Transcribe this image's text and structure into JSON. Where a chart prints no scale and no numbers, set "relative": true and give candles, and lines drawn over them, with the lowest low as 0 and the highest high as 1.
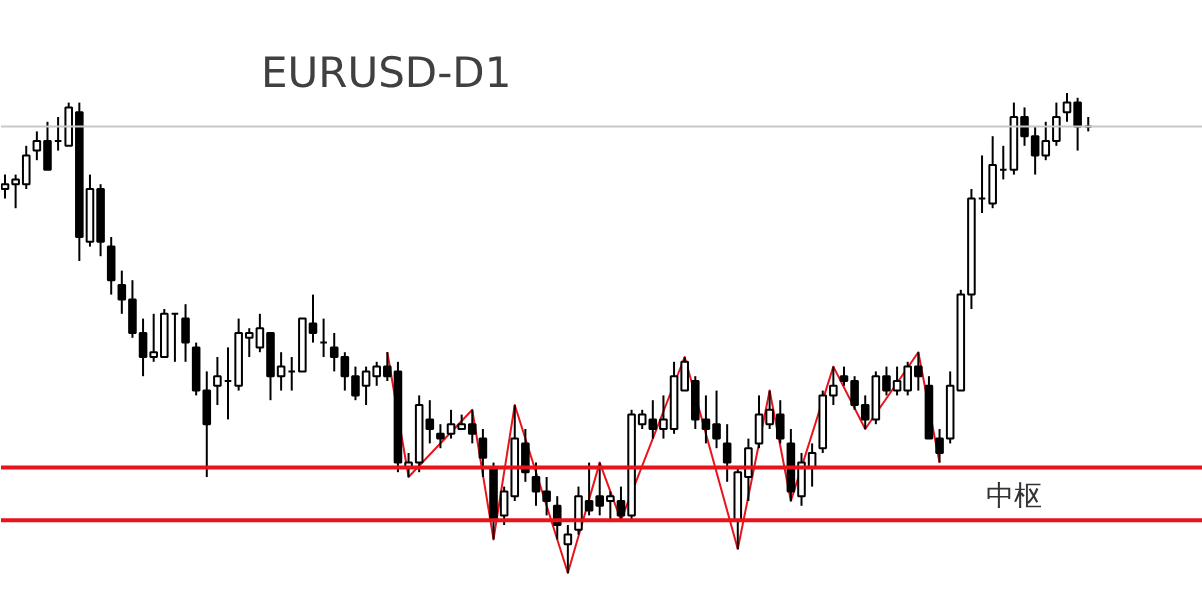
{
  "chart_data": {
    "type": "candlestick",
    "title": "EURUSD-D1",
    "relative": true,
    "color": "#000000",
    "categories": [
      null,
      null,
      null,
      null,
      null,
      null,
      null,
      null,
      null,
      null,
      null,
      null,
      null,
      null,
      null,
      null,
      null,
      null,
      null,
      null,
      null,
      null,
      null,
      null,
      null,
      null,
      null,
      null,
      null,
      null,
      null,
      null,
      null,
      null,
      null,
      null,
      null,
      null,
      null,
      null,
      null,
      null,
      null,
      null,
      null,
      null,
      null,
      null,
      null,
      null,
      null,
      null,
      null,
      null,
      null,
      null,
      null,
      null,
      null,
      null,
      null,
      null,
      null,
      null,
      null,
      null,
      null,
      null,
      null,
      null,
      null,
      null,
      null,
      null,
      null,
      null,
      null,
      null,
      null,
      null,
      null,
      null,
      null,
      null,
      null,
      null,
      null,
      null,
      null,
      null,
      null,
      null,
      null,
      null,
      null,
      null,
      null,
      null,
      null,
      null,
      null,
      null,
      null
    ],
    "ohlc": [
      [
        0.8,
        0.83,
        0.78,
        0.81
      ],
      [
        0.81,
        0.83,
        0.76,
        0.82
      ],
      [
        0.81,
        0.89,
        0.8,
        0.87
      ],
      [
        0.88,
        0.92,
        0.86,
        0.9
      ],
      [
        0.9,
        0.94,
        0.84,
        0.84
      ],
      [
        0.9,
        0.95,
        0.88,
        0.9
      ],
      [
        0.89,
        0.98,
        0.89,
        0.97
      ],
      [
        0.96,
        0.98,
        0.65,
        0.7
      ],
      [
        0.69,
        0.83,
        0.68,
        0.8
      ],
      [
        0.8,
        0.81,
        0.66,
        0.69
      ],
      [
        0.68,
        0.7,
        0.58,
        0.61
      ],
      [
        0.6,
        0.63,
        0.54,
        0.57
      ],
      [
        0.57,
        0.61,
        0.49,
        0.5
      ],
      [
        0.5,
        0.53,
        0.41,
        0.45
      ],
      [
        0.45,
        0.54,
        0.44,
        0.46
      ],
      [
        0.45,
        0.55,
        0.45,
        0.54
      ],
      [
        0.54,
        0.54,
        0.44,
        0.54
      ],
      [
        0.53,
        0.56,
        0.44,
        0.48
      ],
      [
        0.47,
        0.48,
        0.37,
        0.38
      ],
      [
        0.38,
        0.42,
        0.2,
        0.31
      ],
      [
        0.39,
        0.45,
        0.35,
        0.41
      ],
      [
        0.4,
        0.47,
        0.32,
        0.4
      ],
      [
        0.39,
        0.53,
        0.38,
        0.5
      ],
      [
        0.49,
        0.51,
        0.45,
        0.5
      ],
      [
        0.47,
        0.54,
        0.46,
        0.51
      ],
      [
        0.5,
        0.5,
        0.36,
        0.41
      ],
      [
        0.41,
        0.46,
        0.38,
        0.43
      ],
      [
        0.42,
        0.45,
        0.38,
        0.42
      ],
      [
        0.42,
        0.53,
        0.42,
        0.53
      ],
      [
        0.52,
        0.58,
        0.48,
        0.5
      ],
      [
        0.48,
        0.53,
        0.45,
        0.48
      ],
      [
        0.47,
        0.5,
        0.42,
        0.45
      ],
      [
        0.45,
        0.46,
        0.38,
        0.41
      ],
      [
        0.41,
        0.43,
        0.36,
        0.37
      ],
      [
        0.39,
        0.43,
        0.35,
        0.42
      ],
      [
        0.41,
        0.44,
        0.39,
        0.43
      ],
      [
        0.43,
        0.46,
        0.4,
        0.41
      ],
      [
        0.42,
        0.44,
        0.21,
        0.23
      ],
      [
        0.22,
        0.25,
        0.2,
        0.23
      ],
      [
        0.23,
        0.37,
        0.21,
        0.35
      ],
      [
        0.32,
        0.36,
        0.27,
        0.3
      ],
      [
        0.29,
        0.31,
        0.26,
        0.28
      ],
      [
        0.29,
        0.34,
        0.28,
        0.31
      ],
      [
        0.3,
        0.33,
        0.3,
        0.31
      ],
      [
        0.31,
        0.34,
        0.27,
        0.29
      ],
      [
        0.28,
        0.3,
        0.2,
        0.24
      ],
      [
        0.22,
        0.23,
        0.07,
        0.11
      ],
      [
        0.12,
        0.18,
        0.1,
        0.17
      ],
      [
        0.16,
        0.35,
        0.15,
        0.28
      ],
      [
        0.27,
        0.3,
        0.19,
        0.21
      ],
      [
        0.2,
        0.23,
        0.14,
        0.17
      ],
      [
        0.17,
        0.2,
        0.12,
        0.15
      ],
      [
        0.14,
        0.16,
        0.07,
        0.1
      ],
      [
        0.06,
        0.1,
        0.0,
        0.08
      ],
      [
        0.09,
        0.18,
        0.08,
        0.16
      ],
      [
        0.15,
        0.23,
        0.12,
        0.13
      ],
      [
        0.16,
        0.23,
        0.12,
        0.14
      ],
      [
        0.15,
        0.17,
        0.11,
        0.16
      ],
      [
        0.15,
        0.18,
        0.11,
        0.12
      ],
      [
        0.12,
        0.34,
        0.11,
        0.33
      ],
      [
        0.31,
        0.34,
        0.3,
        0.33
      ],
      [
        0.32,
        0.36,
        0.28,
        0.3
      ],
      [
        0.3,
        0.37,
        0.28,
        0.32
      ],
      [
        0.3,
        0.44,
        0.29,
        0.41
      ],
      [
        0.38,
        0.45,
        0.38,
        0.44
      ],
      [
        0.4,
        0.41,
        0.3,
        0.32
      ],
      [
        0.32,
        0.37,
        0.27,
        0.3
      ],
      [
        0.31,
        0.38,
        0.26,
        0.28
      ],
      [
        0.27,
        0.31,
        0.19,
        0.23
      ],
      [
        0.11,
        0.22,
        0.05,
        0.21
      ],
      [
        0.2,
        0.28,
        0.15,
        0.26
      ],
      [
        0.27,
        0.37,
        0.26,
        0.33
      ],
      [
        0.31,
        0.38,
        0.3,
        0.34
      ],
      [
        0.33,
        0.36,
        0.27,
        0.28
      ],
      [
        0.27,
        0.3,
        0.15,
        0.17
      ],
      [
        0.16,
        0.25,
        0.14,
        0.23
      ],
      [
        0.22,
        0.27,
        0.18,
        0.25
      ],
      [
        0.26,
        0.38,
        0.25,
        0.37
      ],
      [
        0.37,
        0.43,
        0.35,
        0.39
      ],
      [
        0.41,
        0.43,
        0.39,
        0.4
      ],
      [
        0.4,
        0.41,
        0.34,
        0.35
      ],
      [
        0.35,
        0.37,
        0.3,
        0.32
      ],
      [
        0.32,
        0.42,
        0.31,
        0.41
      ],
      [
        0.41,
        0.43,
        0.37,
        0.38
      ],
      [
        0.38,
        0.43,
        0.37,
        0.4
      ],
      [
        0.38,
        0.44,
        0.37,
        0.43
      ],
      [
        0.43,
        0.46,
        0.38,
        0.41
      ],
      [
        0.39,
        0.41,
        0.28,
        0.28
      ],
      [
        0.28,
        0.3,
        0.23,
        0.25
      ],
      [
        0.28,
        0.42,
        0.27,
        0.39
      ],
      [
        0.38,
        0.59,
        0.38,
        0.58
      ],
      [
        0.58,
        0.8,
        0.55,
        0.78
      ],
      [
        0.78,
        0.87,
        0.75,
        0.78
      ],
      [
        0.77,
        0.91,
        0.76,
        0.85
      ],
      [
        0.84,
        0.89,
        0.82,
        0.84
      ],
      [
        0.84,
        0.98,
        0.83,
        0.95
      ],
      [
        0.95,
        0.97,
        0.89,
        0.91
      ],
      [
        0.91,
        0.93,
        0.83,
        0.87
      ],
      [
        0.87,
        0.94,
        0.86,
        0.9
      ],
      [
        0.9,
        0.98,
        0.89,
        0.95
      ],
      [
        0.96,
        1.0,
        0.94,
        0.98
      ],
      [
        0.98,
        0.99,
        0.88,
        0.93
      ],
      [
        0.93,
        0.95,
        0.92,
        0.93
      ]
    ],
    "series": [
      {
        "type": "line",
        "color": "#e8131b",
        "values": [
          null,
          null,
          null,
          null,
          null,
          null,
          null,
          null,
          null,
          null,
          null,
          null,
          null,
          null,
          null,
          null,
          null,
          null,
          null,
          null,
          null,
          null,
          null,
          null,
          null,
          null,
          null,
          null,
          null,
          null,
          null,
          null,
          null,
          null,
          null,
          null,
          0.46,
          null,
          0.2,
          null,
          null,
          null,
          null,
          null,
          0.34,
          null,
          0.07,
          null,
          0.35,
          null,
          null,
          null,
          null,
          0.0,
          null,
          null,
          0.23,
          null,
          0.11,
          null,
          null,
          null,
          null,
          null,
          0.45,
          null,
          null,
          null,
          null,
          0.05,
          null,
          null,
          0.38,
          null,
          0.15,
          null,
          null,
          null,
          0.43,
          null,
          null,
          0.3,
          null,
          null,
          null,
          null,
          0.46,
          null,
          0.23,
          null,
          null,
          null,
          null,
          null,
          null,
          null,
          null,
          null,
          null,
          null,
          null,
          null,
          null
        ]
      }
    ],
    "ref_lines": [
      {
        "axis": "y",
        "value": 0.93,
        "color": "#c8c8c8"
      },
      {
        "axis": "y",
        "value": 0.22,
        "color": "#e8131b",
        "label": "中枢"
      },
      {
        "axis": "y",
        "value": 0.11,
        "color": "#e8131b"
      }
    ],
    "grid": false
  }
}
